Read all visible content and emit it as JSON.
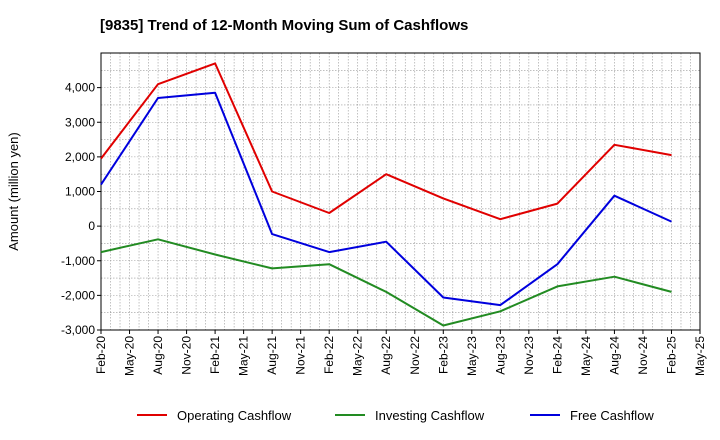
{
  "chart_data": {
    "type": "line",
    "title": "[9835]  Trend of 12-Month Moving Sum of Cashflows",
    "xlabel": "",
    "ylabel": "Amount (million yen)",
    "x_ticks": [
      "Feb-20",
      "May-20",
      "Aug-20",
      "Nov-20",
      "Feb-21",
      "May-21",
      "Aug-21",
      "Nov-21",
      "Feb-22",
      "May-22",
      "Aug-22",
      "Nov-22",
      "Feb-23",
      "May-23",
      "Aug-23",
      "Nov-23",
      "Feb-24",
      "May-24",
      "Aug-24",
      "Nov-24",
      "Feb-25",
      "May-25"
    ],
    "y_ticks": [
      "4,000",
      "3,000",
      "2,000",
      "1,000",
      "0",
      "-1,000",
      "-2,000",
      "-3,000"
    ],
    "y_tick_values": [
      4000,
      3000,
      2000,
      1000,
      0,
      -1000,
      -2000,
      -3000
    ],
    "ylim": [
      -3000,
      5000
    ],
    "grid": true,
    "legend_position": "bottom",
    "x": [
      "Feb-20",
      "Aug-20",
      "Feb-21",
      "Aug-21",
      "Feb-22",
      "Aug-22",
      "Feb-23",
      "Aug-23",
      "Feb-24",
      "Aug-24",
      "Feb-25"
    ],
    "series": [
      {
        "name": "Operating Cashflow",
        "color": "#e00000",
        "values": [
          1950,
          4100,
          4700,
          1000,
          380,
          1500,
          800,
          200,
          650,
          2350,
          2050
        ]
      },
      {
        "name": "Investing Cashflow",
        "color": "#228b22",
        "values": [
          -750,
          -380,
          -820,
          -1220,
          -1100,
          -1900,
          -2870,
          -2460,
          -1740,
          -1460,
          -1900
        ]
      },
      {
        "name": "Free Cashflow",
        "color": "#0000dd",
        "values": [
          1200,
          3700,
          3850,
          -230,
          -750,
          -450,
          -2060,
          -2280,
          -1100,
          880,
          130
        ]
      }
    ]
  }
}
